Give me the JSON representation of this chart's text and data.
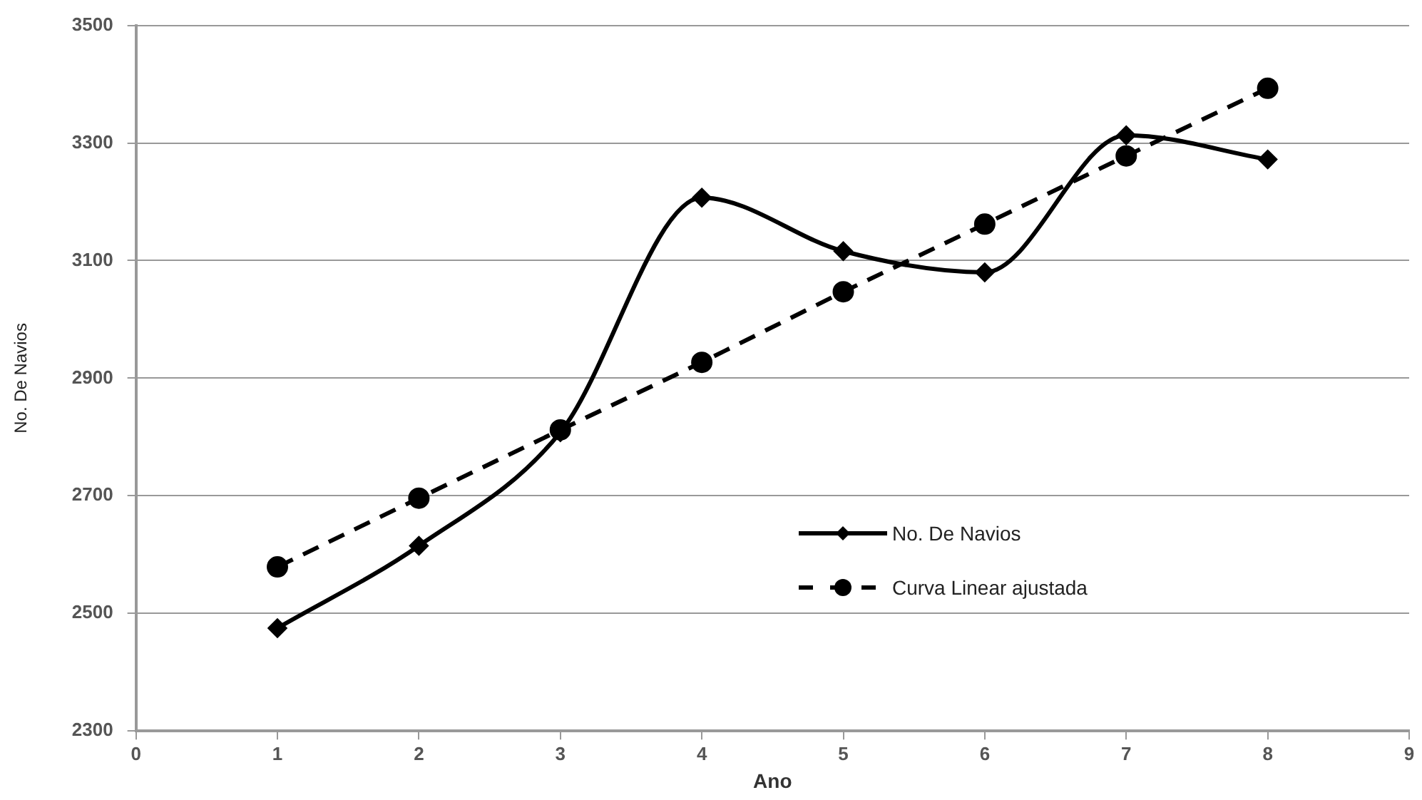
{
  "chart_data": {
    "type": "line",
    "xlabel": "Ano",
    "ylabel": "No. De Navios",
    "x": [
      1,
      2,
      3,
      4,
      5,
      6,
      7,
      8
    ],
    "series": [
      {
        "name": "No. De Navios",
        "color": "#000000",
        "marker": "diamond",
        "line_style": "solid",
        "values": [
          2475,
          2615,
          2808,
          3207,
          3116,
          3080,
          3313,
          3272
        ]
      },
      {
        "name": "Curva Linear ajustada",
        "color": "#000000",
        "marker": "circle",
        "line_style": "dashed",
        "values": [
          2579,
          2696,
          2812,
          2927,
          3047,
          3162,
          3278,
          3393
        ]
      }
    ],
    "xlim": [
      0,
      9
    ],
    "xticks": [
      0,
      1,
      2,
      3,
      4,
      5,
      6,
      7,
      8,
      9
    ],
    "ylim": [
      2300,
      3500
    ],
    "yticks": [
      2300,
      2500,
      2700,
      2900,
      3100,
      3300,
      3500
    ],
    "grid": "y",
    "legend": "right"
  }
}
